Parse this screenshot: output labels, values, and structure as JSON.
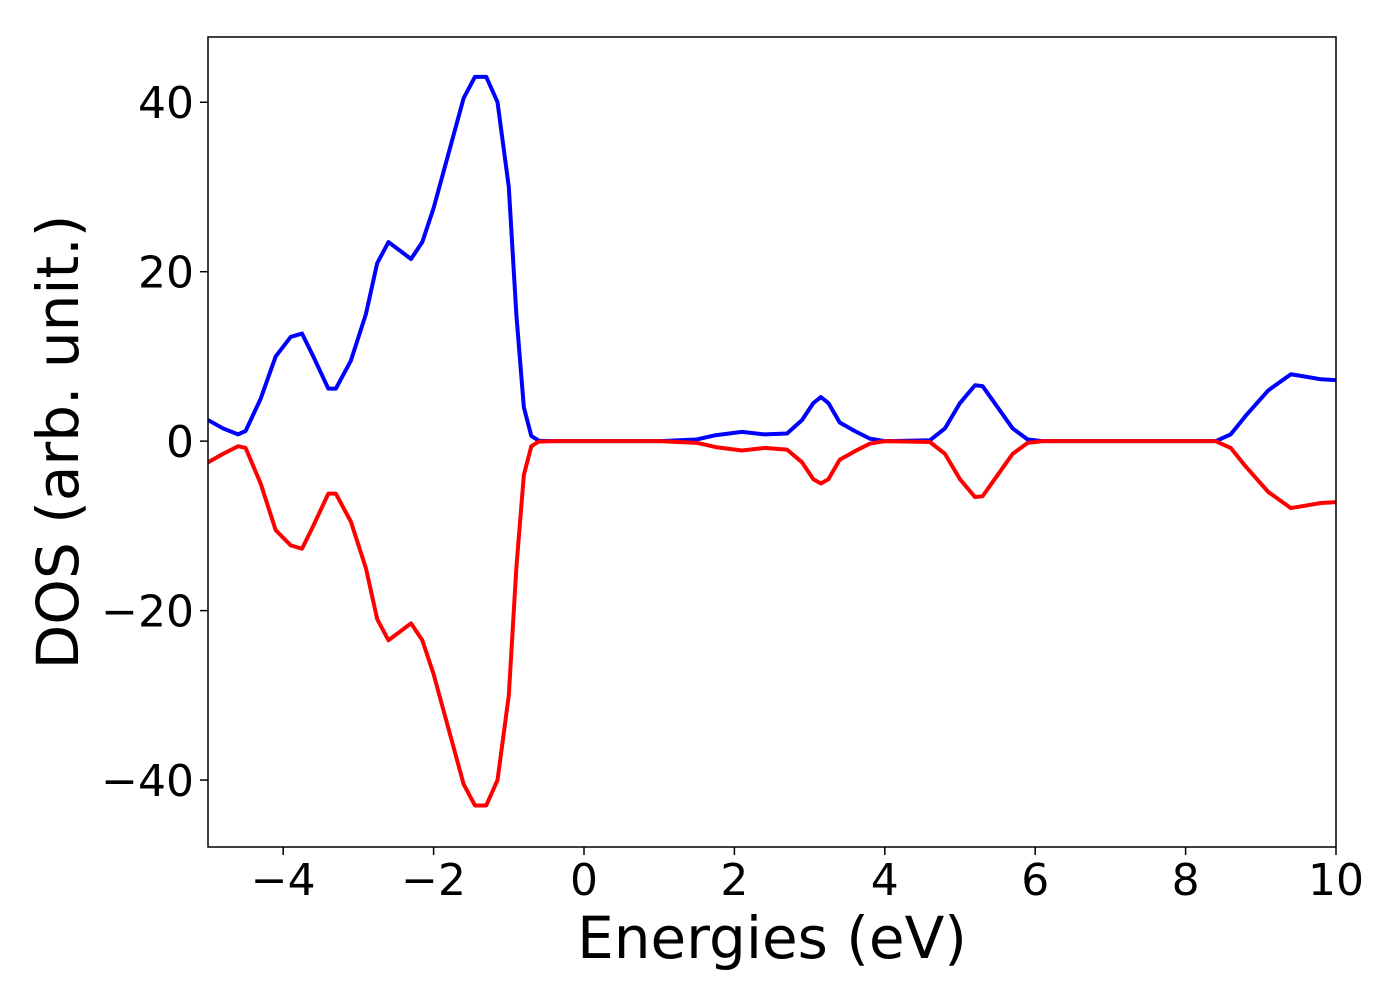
{
  "chart_data": {
    "type": "line",
    "x_label": "Energies (eV)",
    "y_label": "DOS (arb. unit.)",
    "x": [
      -5,
      -4.8,
      -4.6,
      -4.5,
      -4.3,
      -4.1,
      -3.9,
      -3.75,
      -3.6,
      -3.4,
      -3.3,
      -3.1,
      -2.9,
      -2.75,
      -2.6,
      -2.45,
      -2.3,
      -2.15,
      -2.0,
      -1.8,
      -1.6,
      -1.45,
      -1.3,
      -1.15,
      -1.0,
      -0.9,
      -0.8,
      -0.7,
      -0.6,
      -0.4,
      0,
      1.0,
      1.5,
      1.75,
      2.1,
      2.4,
      2.7,
      2.9,
      3.05,
      3.15,
      3.25,
      3.4,
      3.6,
      3.8,
      4.0,
      4.6,
      4.8,
      5.0,
      5.2,
      5.3,
      5.5,
      5.7,
      5.9,
      6.1,
      8.4,
      8.6,
      8.8,
      9.1,
      9.4,
      9.6,
      9.8,
      10
    ],
    "series": [
      {
        "color": "#0000ff",
        "values": [
          2.5,
          1.5,
          0.8,
          1.2,
          5,
          10,
          12.3,
          12.7,
          10,
          6.2,
          6.2,
          9.5,
          15,
          21,
          23.5,
          22.5,
          21.5,
          23.5,
          27.5,
          34,
          40.5,
          43,
          43,
          40,
          30,
          15,
          4,
          0.6,
          0.05,
          0,
          0,
          0,
          0.2,
          0.7,
          1.1,
          0.8,
          0.9,
          2.5,
          4.5,
          5.2,
          4.5,
          2.2,
          1.2,
          0.3,
          0,
          0.1,
          1.5,
          4.5,
          6.6,
          6.5,
          4,
          1.5,
          0.2,
          0,
          0,
          0.8,
          3,
          6,
          7.9,
          7.6,
          7.3,
          7.2
        ]
      },
      {
        "color": "#ff0000",
        "values": [
          -2.5,
          -1.5,
          -0.6,
          -0.8,
          -5,
          -10.5,
          -12.3,
          -12.7,
          -10,
          -6.2,
          -6.2,
          -9.5,
          -15,
          -21,
          -23.5,
          -22.5,
          -21.5,
          -23.5,
          -27.5,
          -34,
          -40.5,
          -43,
          -43,
          -40,
          -30,
          -15,
          -4,
          -0.6,
          -0.05,
          0,
          0,
          0,
          -0.2,
          -0.7,
          -1.1,
          -0.8,
          -1.0,
          -2.5,
          -4.5,
          -5.0,
          -4.5,
          -2.2,
          -1.2,
          -0.3,
          0,
          -0.1,
          -1.5,
          -4.5,
          -6.6,
          -6.5,
          -4,
          -1.5,
          -0.2,
          0,
          0,
          -0.8,
          -3,
          -6,
          -7.9,
          -7.6,
          -7.3,
          -7.2
        ]
      }
    ],
    "xlim": [
      -5,
      10
    ],
    "xticks": [
      {
        "value": -4,
        "label": "−4"
      },
      {
        "value": -2,
        "label": "−2"
      },
      0,
      2,
      4,
      6,
      8,
      10
    ],
    "ylim": [
      -47.9,
      47.7
    ],
    "yticks": [
      {
        "value": -40,
        "label": "−40"
      },
      {
        "value": -20,
        "label": "−20"
      },
      0,
      20,
      40
    ],
    "grid": false
  }
}
